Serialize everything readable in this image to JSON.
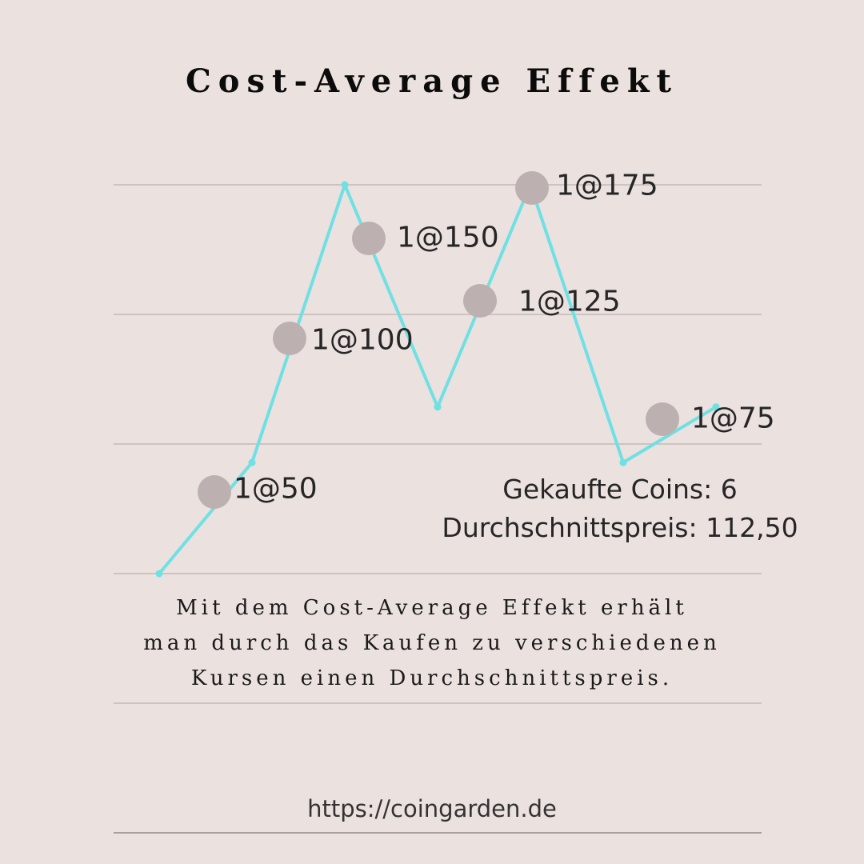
{
  "title": "Cost-Average Effekt",
  "chart_data": {
    "type": "line",
    "line_color": "#6fe0e3",
    "marker_color": "#bcb1b0",
    "grid_color": "#cdc3c1",
    "background": "#ebe1df",
    "y_levels": 4,
    "ylim": [
      0,
      175
    ],
    "line_points": [
      {
        "x": 0,
        "y": 0
      },
      {
        "x": 1,
        "y": 50
      },
      {
        "x": 2,
        "y": 175
      },
      {
        "x": 3,
        "y": 75
      },
      {
        "x": 4,
        "y": 175
      },
      {
        "x": 5,
        "y": 50
      },
      {
        "x": 6,
        "y": 75
      }
    ],
    "purchases": [
      {
        "label": "1@50",
        "price": 50
      },
      {
        "label": "1@100",
        "price": 100
      },
      {
        "label": "1@150",
        "price": 150
      },
      {
        "label": "1@125",
        "price": 125
      },
      {
        "label": "1@175",
        "price": 175
      },
      {
        "label": "1@75",
        "price": 75
      }
    ]
  },
  "summary": {
    "coins": "Gekaufte Coins: 6",
    "average": "Durchschnittspreis: 112,50"
  },
  "description": [
    "Mit dem Cost-Average Effekt erhält",
    "man durch das Kaufen zu verschiedenen",
    "Kursen einen Durchschnittspreis."
  ],
  "url": "https://coingarden.de"
}
